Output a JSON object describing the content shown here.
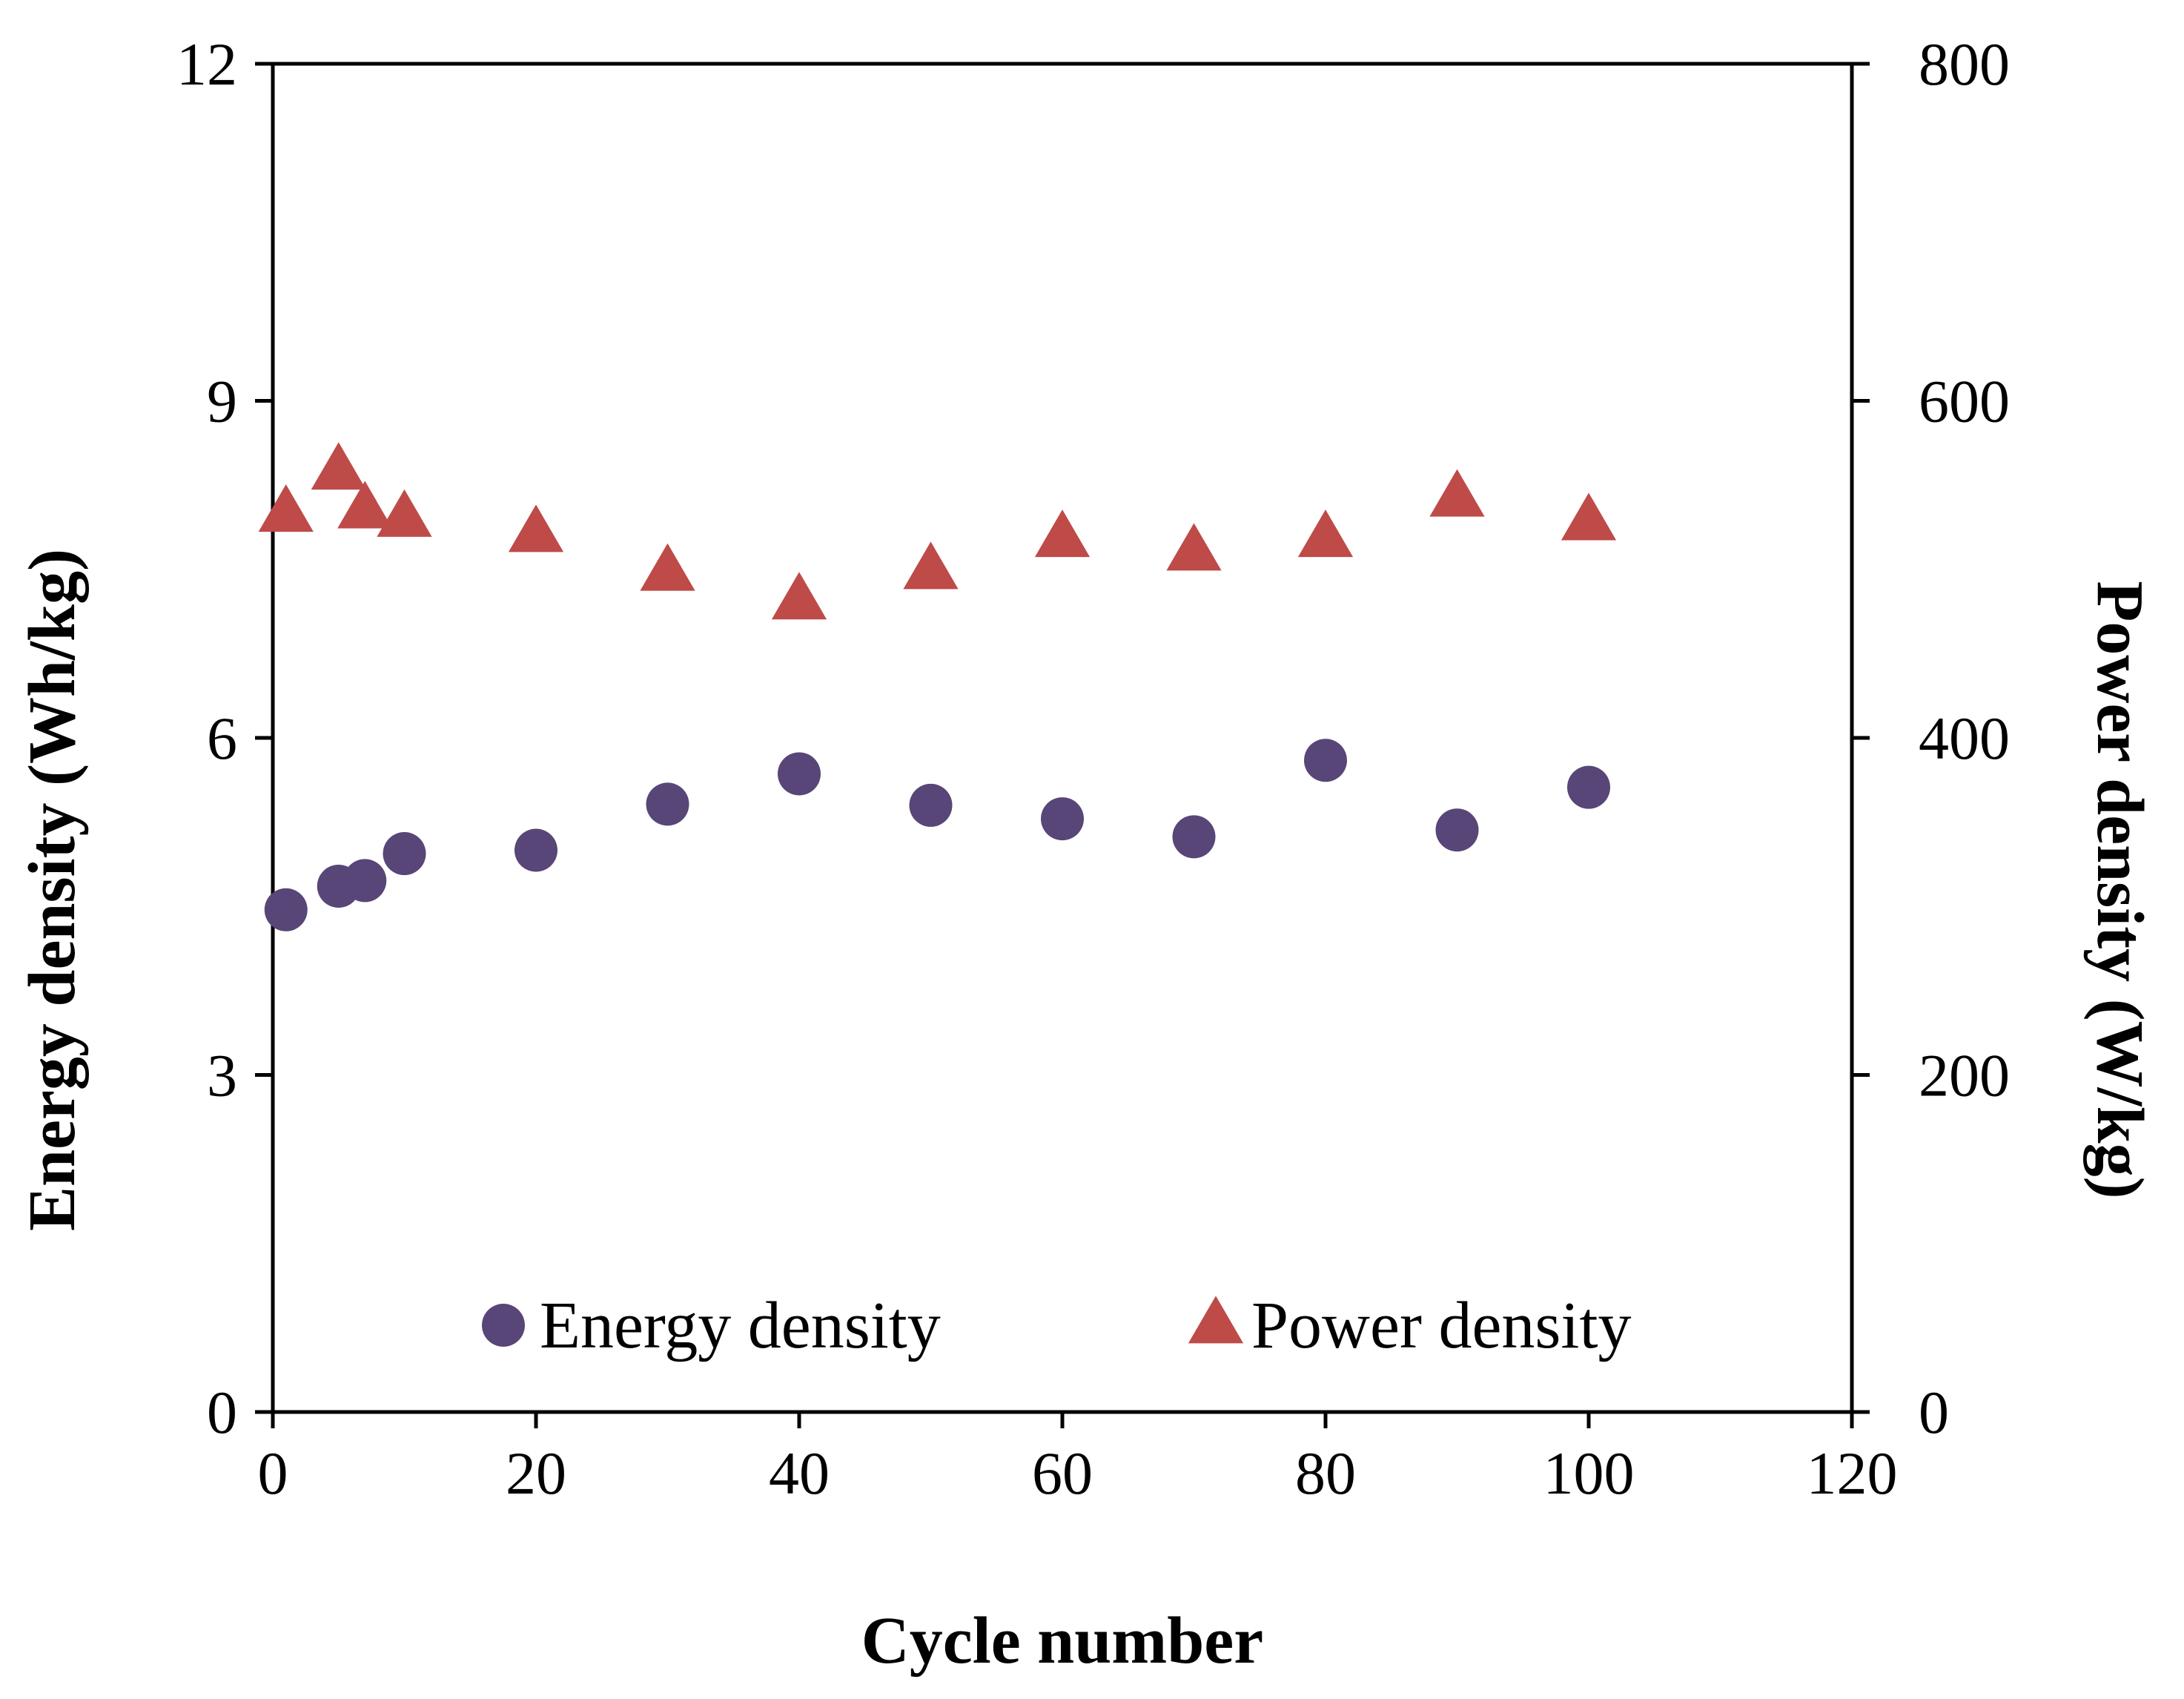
{
  "chart_data": {
    "type": "scatter",
    "title": "",
    "xlabel": "Cycle number",
    "ylabel_left": "Energy density (Wh/kg)",
    "ylabel_right": "Power density (W/kg)",
    "xlim": [
      0,
      120
    ],
    "ylim_left": [
      0,
      12
    ],
    "ylim_right": [
      0,
      800
    ],
    "x_ticks": [
      0,
      20,
      40,
      60,
      80,
      100,
      120
    ],
    "y_left_ticks": [
      0,
      3,
      6,
      9,
      12
    ],
    "y_right_ticks": [
      0,
      200,
      400,
      600,
      800
    ],
    "grid": false,
    "legend_position": "bottom-center inside plot",
    "series": [
      {
        "name": "Energy density",
        "axis": "left",
        "marker": "circle",
        "color": "#574677",
        "x": [
          1,
          5,
          7,
          10,
          20,
          30,
          40,
          50,
          60,
          70,
          80,
          90,
          100
        ],
        "values": [
          4.47,
          4.68,
          4.73,
          4.97,
          5.0,
          5.41,
          5.68,
          5.4,
          5.28,
          5.12,
          5.8,
          5.18,
          5.56
        ]
      },
      {
        "name": "Power density",
        "axis": "right",
        "marker": "triangle",
        "color": "#BE4B48",
        "x": [
          1,
          5,
          7,
          10,
          20,
          30,
          40,
          50,
          60,
          70,
          80,
          90,
          100
        ],
        "values": [
          533,
          558,
          535,
          530,
          521,
          498,
          481,
          499,
          518,
          510,
          518,
          542,
          528
        ]
      }
    ]
  }
}
